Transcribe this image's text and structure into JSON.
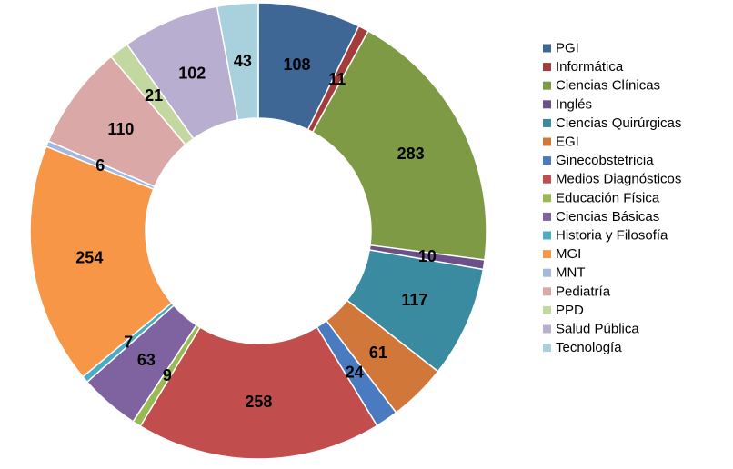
{
  "chart_data": {
    "type": "pie",
    "variant": "doughnut",
    "legend_position": "right",
    "categories": [
      "PGI",
      "Informática",
      "Ciencias Clínicas",
      "Inglés",
      "Ciencias Quirúrgicas",
      "EGI",
      "Ginecobstetricia",
      "Medios Diagnósticos",
      "Educación Física",
      "Ciencias Básicas",
      "Historia y Filosofía",
      "MGI",
      "MNT",
      "Pediatría",
      "PPD",
      "Salud Pública",
      "Tecnología"
    ],
    "values": [
      108,
      11,
      283,
      10,
      117,
      61,
      24,
      258,
      9,
      63,
      7,
      254,
      6,
      110,
      21,
      102,
      43
    ],
    "colors": [
      "#3F6796",
      "#A23D3B",
      "#7E9A45",
      "#6C508A",
      "#3A8BA0",
      "#D2773A",
      "#4A7BC0",
      "#C14E4C",
      "#98B954",
      "#7F63A0",
      "#4BACC6",
      "#F79646",
      "#A3B8DD",
      "#D9A8A7",
      "#C3D7A0",
      "#B7AED0",
      "#A8D0DD"
    ],
    "data_labels": [
      "108",
      "11",
      "283",
      "10",
      "117",
      "61",
      "24",
      "258",
      "9",
      "63",
      "7",
      "254",
      "6",
      "110",
      "21",
      "102",
      "43"
    ]
  }
}
